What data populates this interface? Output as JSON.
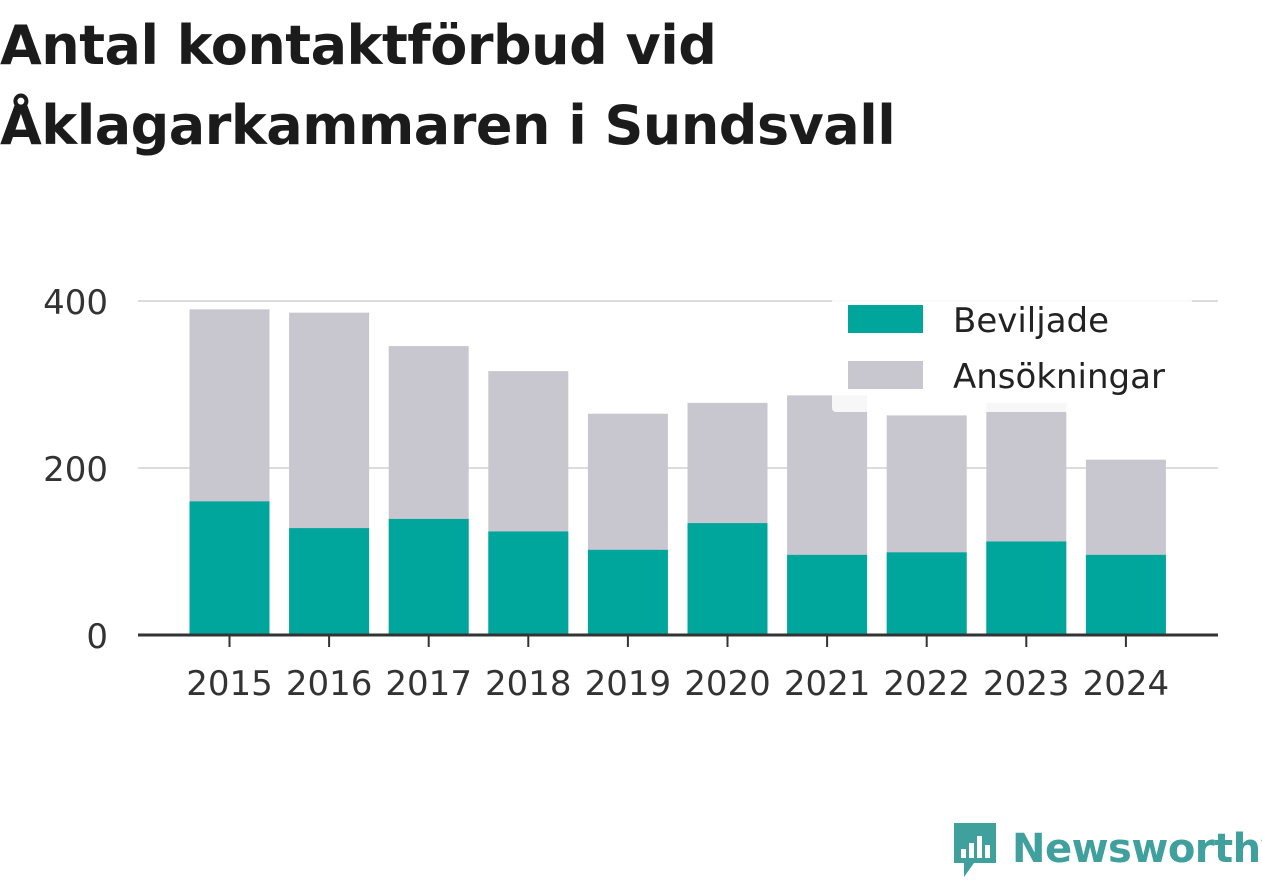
{
  "title": {
    "line1": "Antal kontaktförbud vid",
    "line2": "Åklagarkammaren i Sundsvall"
  },
  "brand": {
    "name": "Newsworthy",
    "icon": "newsworthy-logo-icon",
    "color": "#3fa09d"
  },
  "colors": {
    "accent": "#00a59c",
    "secondary": "#c8c7cf",
    "grid": "#dcdcdc",
    "axis": "#333333"
  },
  "chart_data": {
    "type": "bar",
    "stacked": false,
    "overlay": true,
    "categories": [
      "2015",
      "2016",
      "2017",
      "2018",
      "2019",
      "2020",
      "2021",
      "2022",
      "2023",
      "2024"
    ],
    "series": [
      {
        "name": "Beviljade",
        "color": "#00a59c",
        "values": [
          160,
          128,
          139,
          124,
          102,
          134,
          96,
          99,
          112,
          96
        ]
      },
      {
        "name": "Ansökningar",
        "color": "#c8c7cf",
        "values": [
          390,
          386,
          346,
          316,
          265,
          278,
          287,
          263,
          278,
          210
        ]
      }
    ],
    "title": "Antal kontaktförbud vid Åklagarkammaren i Sundsvall",
    "xlabel": "",
    "ylabel": "",
    "ylim": [
      0,
      400
    ],
    "yticks": [
      0,
      200,
      400
    ],
    "grid": true,
    "legend": "top-right"
  }
}
